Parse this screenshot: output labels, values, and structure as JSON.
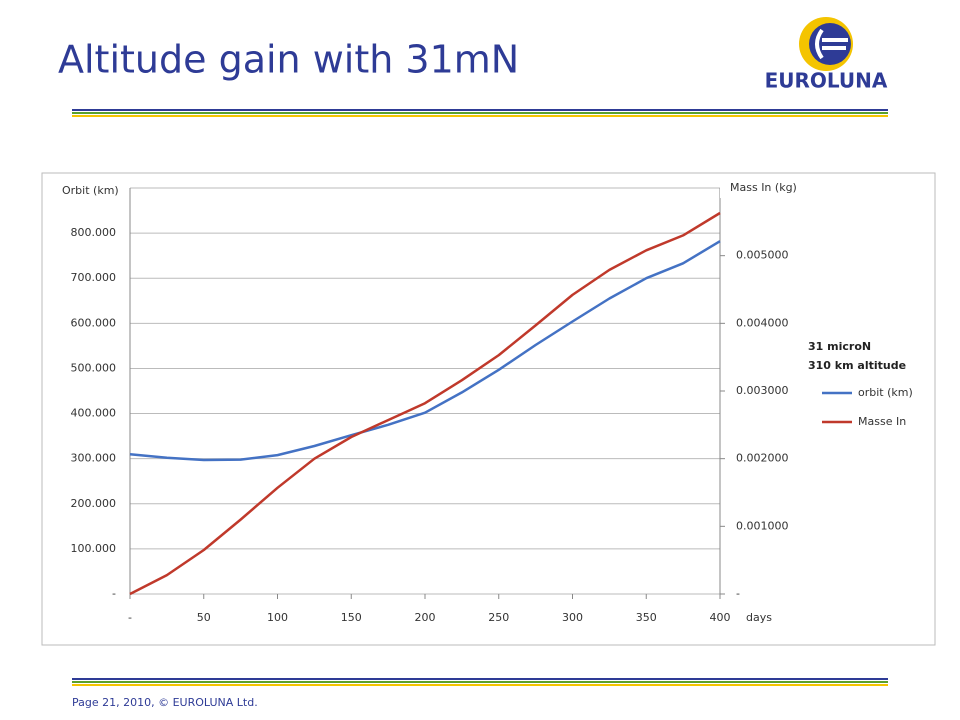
{
  "header": {
    "title": "Altitude gain with 31mN",
    "logo_text": "EUROLUNA"
  },
  "footer": {
    "text": "Page 21, 2010, © EUROLUNA Ltd."
  },
  "chart_data": {
    "type": "line",
    "y_label": "Orbit (km)",
    "y2_label": "Mass In (kg)",
    "x_label": "days",
    "legend_title": [
      "31 microN",
      "310 km altitude"
    ],
    "x": [
      0,
      25,
      50,
      75,
      100,
      125,
      150,
      175,
      200,
      225,
      250,
      275,
      300,
      325,
      350,
      375,
      400
    ],
    "series": [
      {
        "name": "orbit (km)",
        "color": "#4472c4",
        "values": [
          310,
          302,
          297,
          298,
          308,
          328,
          352,
          375,
          402,
          447,
          497,
          552,
          604,
          655,
          700,
          733,
          782
        ]
      },
      {
        "name": "Masse In",
        "color": "#c0392b",
        "axis": "y2",
        "values": [
          0,
          0.00028,
          0.00065,
          0.0011,
          0.00157,
          0.002,
          0.00232,
          0.00257,
          0.00282,
          0.00316,
          0.00353,
          0.00397,
          0.00442,
          0.00479,
          0.00508,
          0.0053,
          0.00563
        ]
      }
    ],
    "xlim": [
      0,
      400
    ],
    "xticks": [
      {
        "value": 0,
        "label": "-"
      },
      50,
      100,
      150,
      200,
      250,
      300,
      350,
      400
    ],
    "ylim": [
      0,
      900
    ],
    "yticks": [
      {
        "value": 0,
        "label": "-"
      },
      {
        "value": 100,
        "label": "100.000"
      },
      {
        "value": 200,
        "label": "200.000"
      },
      {
        "value": 300,
        "label": "300.000"
      },
      {
        "value": 400,
        "label": "400.000"
      },
      {
        "value": 500,
        "label": "500.000"
      },
      {
        "value": 600,
        "label": "600.000"
      },
      {
        "value": 700,
        "label": "700.000"
      },
      {
        "value": 800,
        "label": "800.000"
      }
    ],
    "y2lim": [
      0,
      0.006
    ],
    "y2ticks": [
      {
        "value": 0,
        "label": "-"
      },
      {
        "value": 0.001,
        "label": "0.001000"
      },
      {
        "value": 0.002,
        "label": "0.002000"
      },
      {
        "value": 0.003,
        "label": "0.003000"
      },
      {
        "value": 0.004,
        "label": "0.004000"
      },
      {
        "value": 0.005,
        "label": "0.005000"
      }
    ],
    "grid": true
  }
}
